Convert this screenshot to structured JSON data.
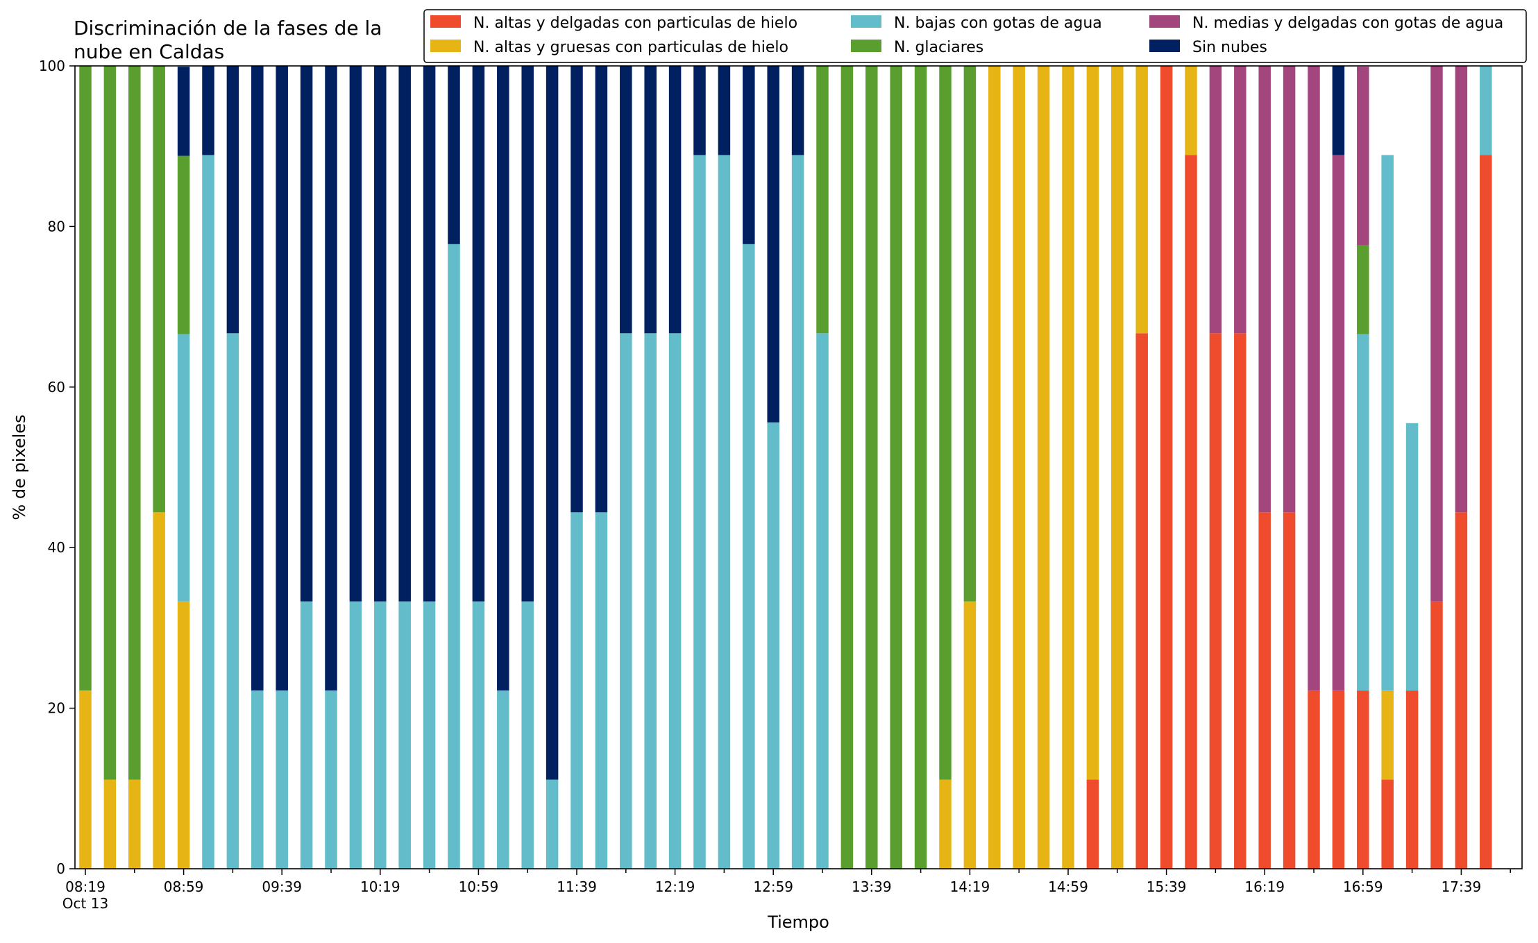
{
  "chart_data": {
    "type": "bar",
    "stacked": true,
    "title_lines": [
      "Discriminación de la fases de la",
      "nube en Caldas"
    ],
    "xlabel": "Tiempo",
    "ylabel": "% de pixeles",
    "ylim": [
      0,
      100
    ],
    "yticks": [
      "0",
      "20",
      "40",
      "60",
      "80",
      "100"
    ],
    "x_major_tick_labels": [
      "08:19",
      "08:59",
      "09:39",
      "10:19",
      "10:59",
      "11:39",
      "12:19",
      "12:59",
      "13:39",
      "14:19",
      "14:59",
      "15:39",
      "16:19",
      "16:59",
      "17:39"
    ],
    "x_date_label": "Oct 13",
    "legend_position": "top-right",
    "grid": false,
    "categories": [
      "08:19",
      "08:29",
      "08:39",
      "08:49",
      "08:59",
      "09:09",
      "09:19",
      "09:29",
      "09:39",
      "09:49",
      "09:59",
      "10:09",
      "10:19",
      "10:29",
      "10:39",
      "10:49",
      "10:59",
      "11:09",
      "11:19",
      "11:29",
      "11:39",
      "11:49",
      "11:59",
      "12:09",
      "12:19",
      "12:29",
      "12:39",
      "12:49",
      "12:59",
      "13:09",
      "13:19",
      "13:29",
      "13:39",
      "13:49",
      "13:59",
      "14:09",
      "14:19",
      "14:29",
      "14:39",
      "14:49",
      "14:59",
      "15:09",
      "15:19",
      "15:29",
      "15:39",
      "15:49",
      "15:59",
      "16:09",
      "16:19",
      "16:29",
      "16:39",
      "16:49",
      "16:59",
      "17:09",
      "17:19",
      "17:29",
      "17:39",
      "17:49"
    ],
    "series": [
      {
        "name": "N. altas y delgadas con particulas de hielo",
        "color": "#EE4C2C",
        "values": [
          0,
          0,
          0,
          0,
          0,
          0,
          0,
          0,
          0,
          0,
          0,
          0,
          0,
          0,
          0,
          0,
          0,
          0,
          0,
          0,
          0,
          0,
          0,
          0,
          0,
          0,
          0,
          0,
          0,
          0,
          0,
          0,
          0,
          0,
          0,
          0,
          0,
          0,
          0,
          0,
          0,
          11.1,
          0,
          66.7,
          100,
          88.9,
          66.7,
          66.7,
          44.4,
          44.4,
          22.2,
          22.2,
          22.2,
          11.1,
          22.2,
          33.3,
          44.4,
          88.9
        ]
      },
      {
        "name": "N. altas y gruesas con particulas de hielo",
        "color": "#E6B415",
        "values": [
          22.2,
          11.1,
          11.1,
          44.4,
          33.3,
          0,
          0,
          0,
          0,
          0,
          0,
          0,
          0,
          0,
          0,
          0,
          0,
          0,
          0,
          0,
          0,
          0,
          0,
          0,
          0,
          0,
          0,
          0,
          0,
          0,
          0,
          0,
          0,
          0,
          0,
          11.1,
          33.3,
          100,
          100,
          100,
          100,
          88.9,
          100,
          33.3,
          0,
          11.1,
          0,
          0,
          0,
          0,
          0,
          0,
          0,
          11.1,
          0,
          0,
          0,
          0
        ]
      },
      {
        "name": "N. bajas con gotas de agua",
        "color": "#63BCC9",
        "values": [
          0,
          0,
          0,
          0,
          33.3,
          88.9,
          66.7,
          22.2,
          22.2,
          33.3,
          22.2,
          33.3,
          33.3,
          33.3,
          33.3,
          77.8,
          33.3,
          22.2,
          33.3,
          11.1,
          44.4,
          44.4,
          66.7,
          66.7,
          66.7,
          88.9,
          88.9,
          77.8,
          55.6,
          88.9,
          66.7,
          0,
          0,
          0,
          0,
          0,
          0,
          0,
          0,
          0,
          0,
          0,
          0,
          0,
          0,
          0,
          0,
          0,
          0,
          0,
          0,
          0,
          44.4,
          66.7,
          33.3,
          0,
          0,
          11.1
        ]
      },
      {
        "name": "N. glaciares",
        "color": "#5A9E2F",
        "values": [
          77.8,
          88.9,
          88.9,
          55.6,
          22.2,
          0,
          0,
          0,
          0,
          0,
          0,
          0,
          0,
          0,
          0,
          0,
          0,
          0,
          0,
          0,
          0,
          0,
          0,
          0,
          0,
          0,
          0,
          0,
          0,
          0,
          33.3,
          100,
          100,
          100,
          100,
          88.9,
          66.7,
          0,
          0,
          0,
          0,
          0,
          0,
          0,
          0,
          0,
          0,
          0,
          0,
          0,
          0,
          0,
          11.1,
          0,
          0,
          0,
          0,
          0
        ]
      },
      {
        "name": "N. medias y delgadas con gotas de agua",
        "color": "#A3467E",
        "values": [
          0,
          0,
          0,
          0,
          0,
          0,
          0,
          0,
          0,
          0,
          0,
          0,
          0,
          0,
          0,
          0,
          0,
          0,
          0,
          0,
          0,
          0,
          0,
          0,
          0,
          0,
          0,
          0,
          0,
          0,
          0,
          0,
          0,
          0,
          0,
          0,
          0,
          0,
          0,
          0,
          0,
          0,
          0,
          0,
          0,
          0,
          33.3,
          33.3,
          55.6,
          55.6,
          77.8,
          66.7,
          22.2,
          0,
          0,
          66.7,
          55.6,
          0
        ]
      },
      {
        "name": "Sin nubes",
        "color": "#002060",
        "values": [
          0,
          0,
          0,
          0,
          11.1,
          11.1,
          33.3,
          77.8,
          77.8,
          66.7,
          77.8,
          66.7,
          66.7,
          66.7,
          66.7,
          22.2,
          66.7,
          77.8,
          66.7,
          88.9,
          55.6,
          55.6,
          33.3,
          33.3,
          33.3,
          11.1,
          11.1,
          22.2,
          44.4,
          11.1,
          0,
          0,
          0,
          0,
          0,
          0,
          0,
          0,
          0,
          0,
          0,
          0,
          0,
          0,
          0,
          0,
          0,
          0,
          0,
          0,
          0,
          11.1,
          0,
          0,
          0,
          0,
          0,
          0
        ]
      }
    ]
  }
}
